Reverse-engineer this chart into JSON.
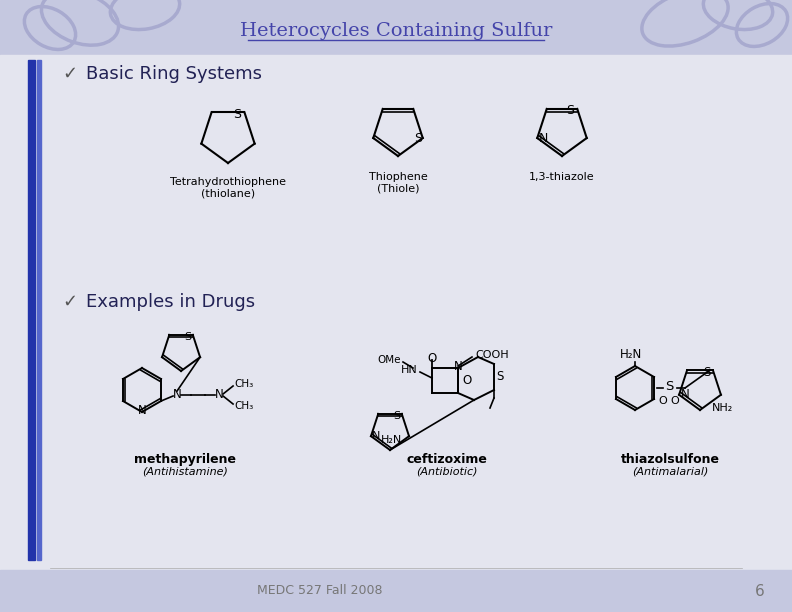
{
  "title": "Heterocycles Containing Sulfur",
  "title_color": "#4444aa",
  "bg_top_color": "#c5c8e0",
  "bg_main_color": "#e4e5ef",
  "bg_bottom_color": "#c5c8e0",
  "bar_color": "#2233aa",
  "bar_color2": "#5566cc",
  "bullet1": "Basic Ring Systems",
  "bullet2": "Examples in Drugs",
  "drug1_name": "methapyrilene",
  "drug1_label": "(Antihistamine)",
  "drug2_name": "ceftizoxime",
  "drug2_label": "(Antibiotic)",
  "drug3_name": "thiazolsulfone",
  "drug3_label": "(Antimalarial)",
  "footer_text": "MEDC 527 Fall 2008",
  "footer_page": "6",
  "footer_color": "#777777",
  "text_color": "#111111",
  "bullet_color": "#222255",
  "deco_color": "#a8aacf"
}
